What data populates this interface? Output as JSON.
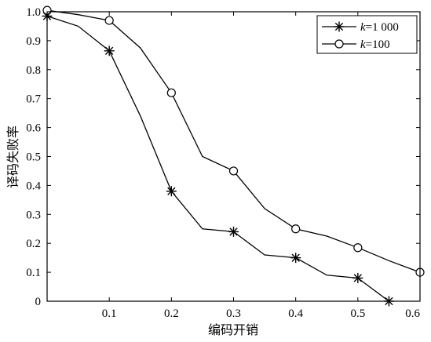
{
  "chart_data": {
    "type": "line",
    "title": "",
    "xlabel": "编码开销",
    "ylabel": "译码失败率",
    "xlim": [
      0,
      0.6
    ],
    "ylim": [
      0,
      1.0
    ],
    "xticks": [
      "0.1",
      "0.2",
      "0.3",
      "0.4",
      "0.5",
      "0.6"
    ],
    "yticks": [
      "0",
      "0.1",
      "0.2",
      "0.3",
      "0.4",
      "0.5",
      "0.6",
      "0.7",
      "0.8",
      "0.9",
      "1.0"
    ],
    "grid": false,
    "legend_position": "top-right",
    "series": [
      {
        "name": "1 000",
        "k_prefix": "k",
        "marker": "asterisk",
        "x": [
          0.0,
          0.05,
          0.1,
          0.15,
          0.2,
          0.25,
          0.3,
          0.35,
          0.4,
          0.45,
          0.5,
          0.55
        ],
        "y": [
          0.985,
          0.95,
          0.865,
          0.64,
          0.38,
          0.25,
          0.24,
          0.16,
          0.15,
          0.09,
          0.08,
          0.0
        ],
        "marker_x": [
          0.0,
          0.1,
          0.2,
          0.3,
          0.4,
          0.5,
          0.55
        ],
        "marker_y": [
          0.985,
          0.865,
          0.38,
          0.24,
          0.15,
          0.08,
          0.0
        ]
      },
      {
        "name": "100",
        "k_prefix": "k",
        "marker": "circle",
        "x": [
          0.0,
          0.05,
          0.1,
          0.15,
          0.2,
          0.25,
          0.3,
          0.35,
          0.4,
          0.45,
          0.5,
          0.55,
          0.6
        ],
        "y": [
          1.005,
          0.99,
          0.97,
          0.875,
          0.72,
          0.5,
          0.45,
          0.32,
          0.25,
          0.225,
          0.185,
          0.14,
          0.1
        ],
        "marker_x": [
          0.0,
          0.1,
          0.2,
          0.3,
          0.4,
          0.5,
          0.6
        ],
        "marker_y": [
          1.005,
          0.97,
          0.72,
          0.45,
          0.25,
          0.185,
          0.1
        ]
      }
    ]
  }
}
